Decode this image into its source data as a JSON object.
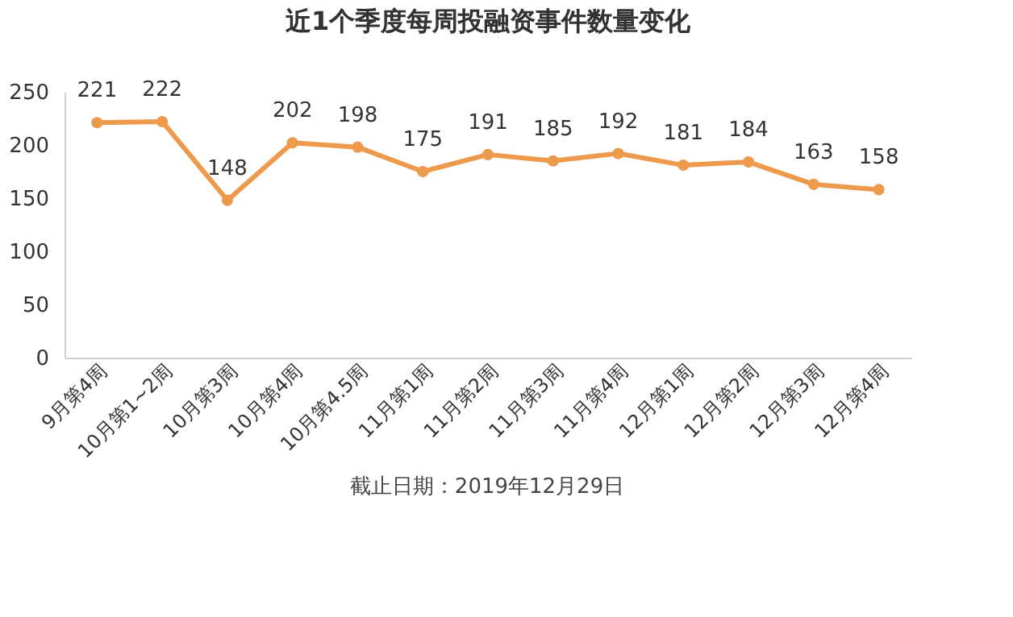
{
  "chart_data": {
    "type": "line",
    "title": "近1个季度每周投融资事件数量变化",
    "categories": [
      "9月第4周",
      "10月第1~2周",
      "10月第3周",
      "10月第4周",
      "10月第4.5周",
      "11月第1周",
      "11月第2周",
      "11月第3周",
      "11月第4周",
      "12月第1周",
      "12月第2周",
      "12月第3周",
      "12月第4周"
    ],
    "values": [
      221,
      222,
      148,
      202,
      198,
      175,
      191,
      185,
      192,
      181,
      184,
      163,
      158
    ],
    "color": "#ee9a4d",
    "ylim": [
      0,
      250
    ],
    "yticks": [
      0,
      50,
      100,
      150,
      200,
      250
    ],
    "grid": false,
    "marker": "circle",
    "line_style": "solid",
    "data_labels": true,
    "annotations": [
      "截止日期：2019年12月29日"
    ]
  }
}
